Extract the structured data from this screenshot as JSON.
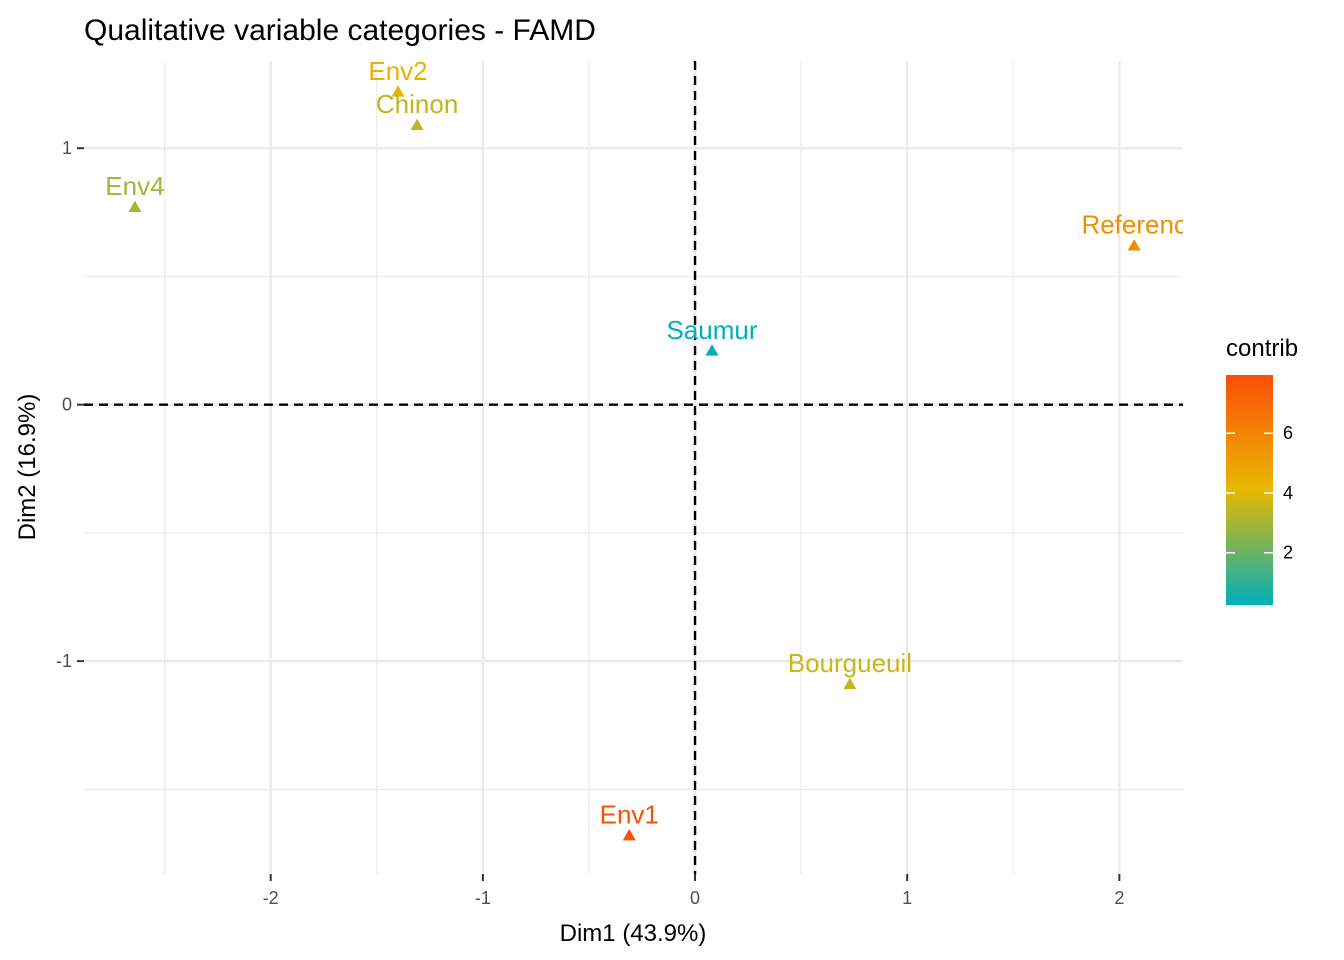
{
  "chart_data": {
    "type": "scatter",
    "title": "Qualitative variable categories - FAMD",
    "xlabel": "Dim1 (43.9%)",
    "ylabel": "Dim2 (16.9%)",
    "xlim": [
      -2.88,
      2.3
    ],
    "ylim": [
      -1.83,
      1.34
    ],
    "x_ticks": [
      -2,
      -1,
      0,
      1,
      2
    ],
    "y_ticks": [
      -1,
      0,
      1
    ],
    "x_tick_labels": [
      "-2",
      "-1",
      "0",
      "1",
      "2"
    ],
    "y_tick_labels": [
      "-1",
      "0",
      "1"
    ],
    "x_minor_grid": [
      -2.5,
      -1.5,
      -0.5,
      0.5,
      1.5
    ],
    "y_minor_grid": [
      -1.5,
      -0.5,
      0.5
    ],
    "reference_lines": {
      "x": 0,
      "y": 0,
      "style": "dashed"
    },
    "grid": true,
    "marker": "triangle",
    "points": [
      {
        "label": "Env2",
        "x": -1.4,
        "y": 1.22,
        "contrib": 4.3
      },
      {
        "label": "Chinon",
        "x": -1.31,
        "y": 1.09,
        "contrib": 3.4
      },
      {
        "label": "Env4",
        "x": -2.64,
        "y": 0.77,
        "contrib": 3.0
      },
      {
        "label": "Referenc",
        "x": 2.07,
        "y": 0.62,
        "contrib": 5.6
      },
      {
        "label": "Saumur",
        "x": 0.08,
        "y": 0.21,
        "contrib": 0.3
      },
      {
        "label": "Bourgueuil",
        "x": 0.73,
        "y": -1.09,
        "contrib": 3.6
      },
      {
        "label": "Env1",
        "x": -0.31,
        "y": -1.68,
        "contrib": 7.9
      }
    ],
    "legend": {
      "title": "contrib",
      "position": "right",
      "min": 0.25,
      "max": 7.95,
      "ticks": [
        2,
        4,
        6
      ],
      "tick_labels": [
        "2",
        "4",
        "6"
      ],
      "gradient_colors": [
        "#00AFBB",
        "#E7B800",
        "#FC4E07"
      ]
    }
  }
}
